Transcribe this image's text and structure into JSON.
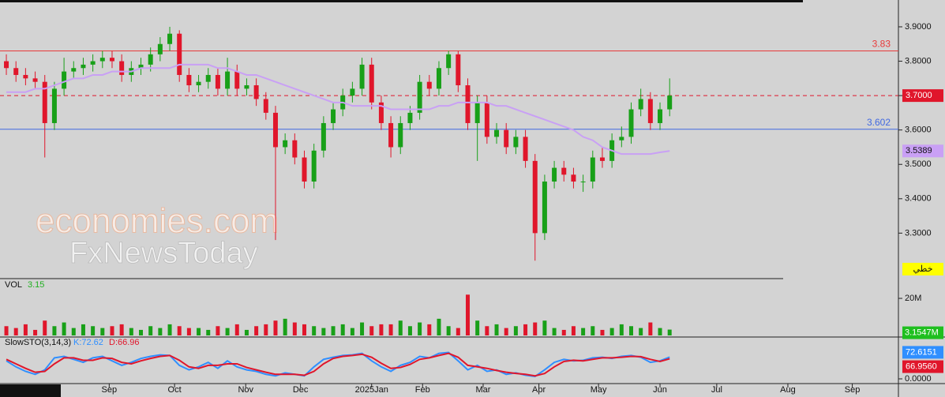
{
  "chart_data": {
    "type": "candlestick",
    "ylim": [
      3.17,
      3.978
    ],
    "yticks": [
      {
        "value": 3.3,
        "label": "3.3000"
      },
      {
        "value": 3.4,
        "label": "3.4000"
      },
      {
        "value": 3.5,
        "label": "3.5000"
      },
      {
        "value": 3.6,
        "label": "3.6000"
      },
      {
        "value": 3.7,
        "label": "3.7000"
      },
      {
        "value": 3.8,
        "label": "3.8000"
      },
      {
        "value": 3.9,
        "label": "3.9000"
      }
    ],
    "xlim": [
      -0.66,
      92.8
    ],
    "xticks": [
      {
        "value": 10.7,
        "label": "Sep"
      },
      {
        "value": 17.5,
        "label": "Oct"
      },
      {
        "value": 24.9,
        "label": "Nov"
      },
      {
        "value": 30.6,
        "label": "Dec"
      },
      {
        "value": 38.0,
        "label": "2025Jan"
      },
      {
        "value": 43.3,
        "label": "Feb"
      },
      {
        "value": 49.6,
        "label": "Mar"
      },
      {
        "value": 55.4,
        "label": "Apr"
      },
      {
        "value": 61.6,
        "label": "May"
      },
      {
        "value": 68.0,
        "label": "Jun"
      },
      {
        "value": 73.9,
        "label": "Jul"
      },
      {
        "value": 81.3,
        "label": "Aug"
      },
      {
        "value": 88.0,
        "label": "Sep"
      }
    ],
    "up_color": "#18a018",
    "down_color": "#e0162b",
    "open": [
      3.8,
      3.78,
      3.76,
      3.75,
      3.74,
      3.62,
      3.72,
      3.77,
      3.78,
      3.79,
      3.8,
      3.81,
      3.8,
      3.76,
      3.78,
      3.79,
      3.82,
      3.85,
      3.88,
      3.76,
      3.73,
      3.74,
      3.76,
      3.72,
      3.77,
      3.72,
      3.73,
      3.69,
      3.65,
      3.55,
      3.57,
      3.52,
      3.45,
      3.54,
      3.62,
      3.66,
      3.7,
      3.72,
      3.79,
      3.68,
      3.62,
      3.55,
      3.62,
      3.65,
      3.74,
      3.72,
      3.78,
      3.82,
      3.73,
      3.62,
      3.68,
      3.58,
      3.6,
      3.55,
      3.58,
      3.51,
      3.3,
      3.45,
      3.49,
      3.47,
      3.45,
      3.45,
      3.52,
      3.51,
      3.57,
      3.58,
      3.66,
      3.69,
      3.62,
      3.66
    ],
    "high": [
      3.82,
      3.8,
      3.78,
      3.77,
      3.76,
      3.74,
      3.81,
      3.8,
      3.81,
      3.82,
      3.83,
      3.83,
      3.82,
      3.8,
      3.81,
      3.84,
      3.87,
      3.9,
      3.89,
      3.78,
      3.76,
      3.78,
      3.78,
      3.81,
      3.79,
      3.75,
      3.75,
      3.71,
      3.67,
      3.59,
      3.59,
      3.54,
      3.56,
      3.64,
      3.68,
      3.72,
      3.74,
      3.81,
      3.81,
      3.7,
      3.64,
      3.64,
      3.67,
      3.76,
      3.76,
      3.8,
      3.83,
      3.83,
      3.75,
      3.7,
      3.7,
      3.62,
      3.62,
      3.6,
      3.6,
      3.53,
      3.47,
      3.51,
      3.51,
      3.49,
      3.47,
      3.54,
      3.55,
      3.59,
      3.61,
      3.68,
      3.72,
      3.71,
      3.68,
      3.75
    ],
    "low": [
      3.76,
      3.74,
      3.73,
      3.72,
      3.52,
      3.6,
      3.7,
      3.75,
      3.76,
      3.77,
      3.78,
      3.78,
      3.74,
      3.74,
      3.76,
      3.77,
      3.8,
      3.83,
      3.74,
      3.71,
      3.71,
      3.72,
      3.7,
      3.7,
      3.7,
      3.7,
      3.67,
      3.63,
      3.28,
      3.53,
      3.5,
      3.43,
      3.43,
      3.52,
      3.6,
      3.64,
      3.68,
      3.7,
      3.66,
      3.6,
      3.52,
      3.53,
      3.6,
      3.63,
      3.7,
      3.7,
      3.76,
      3.71,
      3.6,
      3.51,
      3.56,
      3.56,
      3.53,
      3.53,
      3.49,
      3.22,
      3.28,
      3.43,
      3.45,
      3.43,
      3.42,
      3.43,
      3.49,
      3.49,
      3.55,
      3.56,
      3.64,
      3.6,
      3.6,
      3.64
    ],
    "close": [
      3.78,
      3.76,
      3.75,
      3.74,
      3.62,
      3.72,
      3.77,
      3.78,
      3.79,
      3.8,
      3.81,
      3.8,
      3.76,
      3.78,
      3.79,
      3.82,
      3.85,
      3.88,
      3.76,
      3.73,
      3.74,
      3.76,
      3.72,
      3.77,
      3.72,
      3.73,
      3.69,
      3.65,
      3.55,
      3.57,
      3.52,
      3.45,
      3.54,
      3.62,
      3.66,
      3.7,
      3.72,
      3.79,
      3.68,
      3.62,
      3.55,
      3.62,
      3.65,
      3.74,
      3.72,
      3.78,
      3.82,
      3.73,
      3.62,
      3.68,
      3.58,
      3.6,
      3.55,
      3.58,
      3.51,
      3.3,
      3.45,
      3.49,
      3.47,
      3.45,
      3.45,
      3.52,
      3.51,
      3.57,
      3.58,
      3.66,
      3.69,
      3.62,
      3.66,
      3.7
    ],
    "ma": {
      "color": "#c9a0f5",
      "values": [
        3.71,
        3.71,
        3.71,
        3.72,
        3.72,
        3.73,
        3.74,
        3.75,
        3.75,
        3.76,
        3.76,
        3.77,
        3.77,
        3.77,
        3.78,
        3.78,
        3.78,
        3.78,
        3.79,
        3.79,
        3.79,
        3.79,
        3.78,
        3.78,
        3.77,
        3.76,
        3.76,
        3.75,
        3.74,
        3.73,
        3.72,
        3.71,
        3.7,
        3.69,
        3.68,
        3.68,
        3.67,
        3.67,
        3.67,
        3.67,
        3.66,
        3.66,
        3.66,
        3.66,
        3.66,
        3.67,
        3.67,
        3.68,
        3.68,
        3.68,
        3.68,
        3.67,
        3.67,
        3.66,
        3.65,
        3.64,
        3.63,
        3.62,
        3.61,
        3.6,
        3.58,
        3.57,
        3.55,
        3.54,
        3.53,
        3.53,
        3.53,
        3.53,
        3.535,
        3.5389
      ]
    },
    "levels": [
      {
        "value": 3.83,
        "color": "#e8393a"
      },
      {
        "value": 3.602,
        "color": "#4169e1"
      }
    ],
    "last_price": {
      "value": 3.7,
      "label": "3.7000",
      "color": "#e0162b"
    },
    "annotation": "خطي",
    "watermark": [
      "economies.com",
      "FxNewsToday"
    ],
    "volume": {
      "title": "VOL",
      "value_text": "3.15",
      "ylim": [
        0,
        29.8
      ],
      "yticks": [
        {
          "value": 20,
          "label": "20M"
        }
      ],
      "current": {
        "value": 3.1547,
        "label": "3.1547M"
      },
      "values": [
        5,
        4,
        6,
        3,
        8,
        5,
        7,
        4,
        6,
        5,
        4,
        5,
        6,
        4,
        3,
        5,
        4,
        6,
        5,
        4,
        4,
        3,
        5,
        4,
        6,
        3,
        5,
        6,
        8,
        9,
        7,
        6,
        5,
        4,
        5,
        6,
        4,
        7,
        5,
        6,
        6,
        8,
        5,
        7,
        6,
        9,
        5,
        4,
        22,
        8,
        5,
        6,
        4,
        5,
        6,
        7,
        8,
        4,
        3,
        5,
        4,
        5,
        3,
        4,
        6,
        5,
        4,
        7,
        4,
        3.1547
      ]
    },
    "stoch": {
      "title": "SlowSTO(3,14,3)",
      "k_text": "K:72.62",
      "d_text": "D:66.96",
      "ylim": [
        0,
        100
      ],
      "yticks": [
        {
          "value": 0,
          "label": "0.0000"
        }
      ],
      "k": {
        "color": "#2f8fff",
        "values": [
          60,
          40,
          25,
          15,
          30,
          70,
          75,
          65,
          55,
          70,
          75,
          60,
          45,
          55,
          68,
          75,
          80,
          78,
          45,
          30,
          40,
          55,
          35,
          60,
          40,
          30,
          25,
          15,
          10,
          20,
          15,
          10,
          40,
          65,
          72,
          78,
          80,
          85,
          60,
          40,
          25,
          45,
          55,
          75,
          70,
          85,
          88,
          60,
          30,
          45,
          25,
          30,
          15,
          20,
          12,
          8,
          30,
          55,
          65,
          60,
          62,
          70,
          72,
          68,
          75,
          78,
          72,
          55,
          60,
          72.6151
        ]
      },
      "d": {
        "color": "#e0162b",
        "values": [
          65,
          50,
          35,
          22,
          25,
          50,
          70,
          70,
          62,
          62,
          70,
          68,
          55,
          50,
          60,
          68,
          75,
          78,
          62,
          40,
          35,
          45,
          45,
          50,
          50,
          38,
          30,
          22,
          15,
          15,
          15,
          12,
          25,
          50,
          68,
          75,
          78,
          82,
          72,
          52,
          35,
          38,
          48,
          65,
          70,
          78,
          85,
          72,
          45,
          40,
          35,
          28,
          22,
          18,
          15,
          10,
          18,
          40,
          58,
          62,
          60,
          65,
          70,
          70,
          72,
          75,
          74,
          65,
          58,
          66.956
        ]
      },
      "d_box": {
        "value": 66.956,
        "label": "66.9560"
      }
    }
  }
}
